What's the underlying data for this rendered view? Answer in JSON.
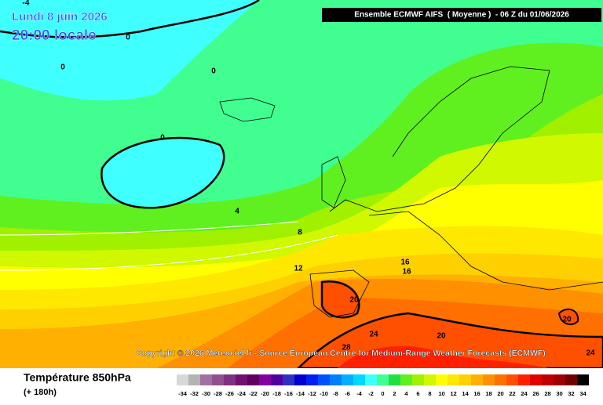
{
  "header": {
    "date": "Lundi 8 juin 2026",
    "time": "20:00 locale",
    "run": "Ensemble ECMWF AIFS  ( Moyenne )  - 06 Z du 01/06/2026",
    "copyright": "Copyright © 2026 Meteociel.fr - Source European Centre for Medium-Range Weather Forecasts (ECMWF)"
  },
  "footer": {
    "title": "Température 850hPa",
    "lead": "(+ 180h)"
  },
  "contour_labels": [
    "-4",
    "0",
    "0",
    "0",
    "0",
    "4",
    "8",
    "12",
    "16",
    "16",
    "20",
    "20",
    "24",
    "20",
    "28",
    "24"
  ],
  "legend": {
    "labels": [
      -34,
      -32,
      -30,
      -28,
      -26,
      -24,
      -22,
      -20,
      -18,
      -16,
      -14,
      -12,
      -10,
      -8,
      -6,
      -4,
      -2,
      0,
      2,
      4,
      6,
      8,
      10,
      12,
      14,
      16,
      18,
      20,
      22,
      24,
      26,
      28,
      30,
      32,
      34
    ],
    "colors": [
      "#d8d8d8",
      "#b4b4b4",
      "#a070a0",
      "#905090",
      "#803080",
      "#701070",
      "#600060",
      "#8000a0",
      "#5000a0",
      "#3030c0",
      "#0000d0",
      "#0020f0",
      "#0050ff",
      "#0080ff",
      "#00b0ff",
      "#00d8ff",
      "#40ffff",
      "#40ff90",
      "#20e040",
      "#60f020",
      "#a0f000",
      "#d0f800",
      "#ffff00",
      "#ffe800",
      "#ffd000",
      "#ffb000",
      "#ff9000",
      "#ff7000",
      "#ff5000",
      "#ff2000",
      "#e00000",
      "#c00000",
      "#a00000",
      "#700000",
      "#000000"
    ]
  }
}
